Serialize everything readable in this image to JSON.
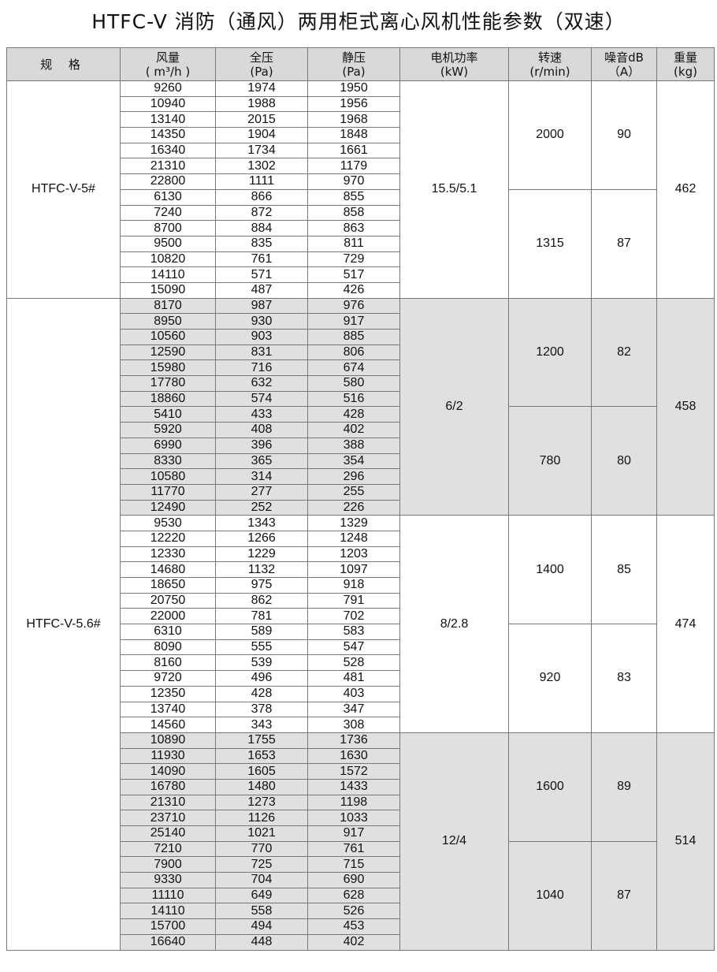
{
  "title": "HTFC-V 消防（通风）两用柜式离心风机性能参数（双速）",
  "headers": [
    [
      "规  格",
      ""
    ],
    [
      "风量",
      "( m³/h )"
    ],
    [
      "全压",
      "(Pa)"
    ],
    [
      "静压",
      "(Pa)"
    ],
    [
      "电机功率",
      "(kW)"
    ],
    [
      "转速",
      "(r/min)"
    ],
    [
      "噪音dB",
      "（A）"
    ],
    [
      "重量",
      "(kg)"
    ]
  ],
  "groups": [
    {
      "model": "HTFC-V-5#",
      "power": "15.5/5.1",
      "weight": "462",
      "shaded": false,
      "speeds": [
        {
          "rpm": "2000",
          "noise": "90"
        },
        {
          "rpm": "1315",
          "noise": "87"
        }
      ],
      "rows": [
        [
          "9260",
          "1974",
          "1950"
        ],
        [
          "10940",
          "1988",
          "1956"
        ],
        [
          "13140",
          "2015",
          "1968"
        ],
        [
          "14350",
          "1904",
          "1848"
        ],
        [
          "16340",
          "1734",
          "1661"
        ],
        [
          "21310",
          "1302",
          "1179"
        ],
        [
          "22800",
          "1111",
          "970"
        ],
        [
          "6130",
          "866",
          "855"
        ],
        [
          "7240",
          "872",
          "858"
        ],
        [
          "8700",
          "884",
          "863"
        ],
        [
          "9500",
          "835",
          "811"
        ],
        [
          "10820",
          "761",
          "729"
        ],
        [
          "14110",
          "571",
          "517"
        ],
        [
          "15090",
          "487",
          "426"
        ]
      ]
    },
    {
      "model": "HTFC-V-5.6#",
      "power": "6/2",
      "weight": "458",
      "shaded": true,
      "speeds": [
        {
          "rpm": "1200",
          "noise": "82"
        },
        {
          "rpm": "780",
          "noise": "80"
        }
      ],
      "rows": [
        [
          "8170",
          "987",
          "976"
        ],
        [
          "8950",
          "930",
          "917"
        ],
        [
          "10560",
          "903",
          "885"
        ],
        [
          "12590",
          "831",
          "806"
        ],
        [
          "15980",
          "716",
          "674"
        ],
        [
          "17780",
          "632",
          "580"
        ],
        [
          "18860",
          "574",
          "516"
        ],
        [
          "5410",
          "433",
          "428"
        ],
        [
          "5920",
          "408",
          "402"
        ],
        [
          "6990",
          "396",
          "388"
        ],
        [
          "8330",
          "365",
          "354"
        ],
        [
          "10580",
          "314",
          "296"
        ],
        [
          "11770",
          "277",
          "255"
        ],
        [
          "12490",
          "252",
          "226"
        ]
      ]
    },
    {
      "model": "",
      "power": "8/2.8",
      "weight": "474",
      "shaded": false,
      "speeds": [
        {
          "rpm": "1400",
          "noise": "85"
        },
        {
          "rpm": "920",
          "noise": "83"
        }
      ],
      "rows": [
        [
          "9530",
          "1343",
          "1329"
        ],
        [
          "12220",
          "1266",
          "1248"
        ],
        [
          "12330",
          "1229",
          "1203"
        ],
        [
          "14680",
          "1132",
          "1097"
        ],
        [
          "18650",
          "975",
          "918"
        ],
        [
          "20750",
          "862",
          "791"
        ],
        [
          "22000",
          "781",
          "702"
        ],
        [
          "6310",
          "589",
          "583"
        ],
        [
          "8090",
          "555",
          "547"
        ],
        [
          "8160",
          "539",
          "528"
        ],
        [
          "9720",
          "496",
          "481"
        ],
        [
          "12350",
          "428",
          "403"
        ],
        [
          "13740",
          "378",
          "347"
        ],
        [
          "14560",
          "343",
          "308"
        ]
      ]
    },
    {
      "model": "",
      "power": "12/4",
      "weight": "514",
      "shaded": true,
      "speeds": [
        {
          "rpm": "1600",
          "noise": "89"
        },
        {
          "rpm": "1040",
          "noise": "87"
        }
      ],
      "rows": [
        [
          "10890",
          "1755",
          "1736"
        ],
        [
          "11930",
          "1653",
          "1630"
        ],
        [
          "14090",
          "1605",
          "1572"
        ],
        [
          "16780",
          "1480",
          "1433"
        ],
        [
          "21310",
          "1273",
          "1198"
        ],
        [
          "23710",
          "1126",
          "1033"
        ],
        [
          "25140",
          "1021",
          "917"
        ],
        [
          "7210",
          "770",
          "761"
        ],
        [
          "7900",
          "725",
          "715"
        ],
        [
          "9330",
          "704",
          "690"
        ],
        [
          "11110",
          "649",
          "628"
        ],
        [
          "14110",
          "558",
          "526"
        ],
        [
          "15700",
          "494",
          "453"
        ],
        [
          "16640",
          "448",
          "402"
        ]
      ]
    }
  ]
}
